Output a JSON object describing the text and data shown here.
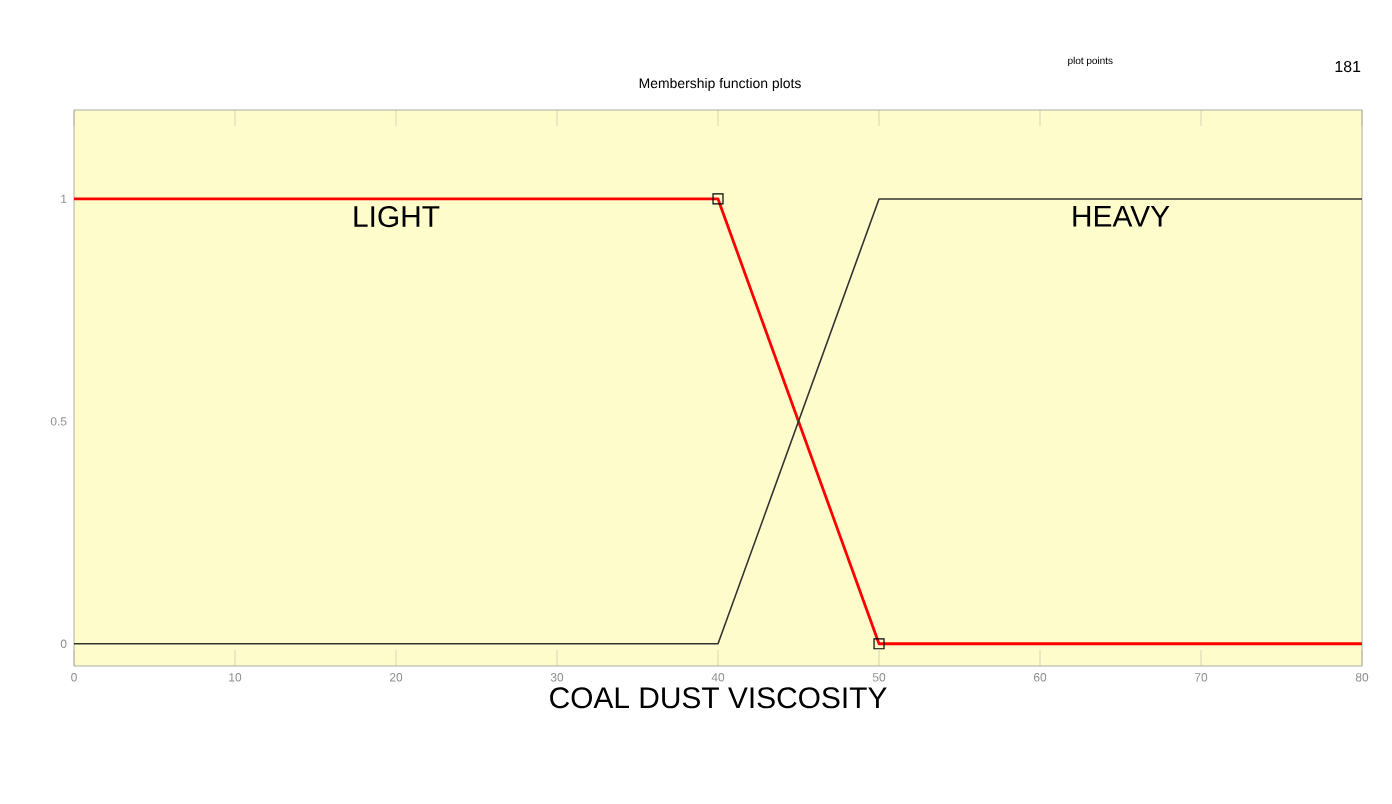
{
  "chart_data": {
    "type": "line",
    "title": "Membership function plots",
    "xlabel": "COAL DUST VISCOSITY",
    "annotations": [
      "plot points",
      "181"
    ],
    "x": [
      0,
      40,
      50,
      80
    ],
    "series": [
      {
        "name": "LIGHT",
        "color": "#ff0000",
        "values": [
          1,
          1,
          0,
          0
        ]
      },
      {
        "name": "HEAVY",
        "color": "#333333",
        "values": [
          0,
          0,
          1,
          1
        ]
      },
      {
        "type": "scatter",
        "color": "#000000",
        "x": [
          40,
          50
        ],
        "values": [
          1,
          0
        ],
        "marker": "square"
      }
    ],
    "xlim": [
      0,
      80
    ],
    "ylim": [
      -0.05,
      1.2
    ],
    "xticks": [
      0,
      10,
      20,
      30,
      40,
      50,
      60,
      70,
      80
    ],
    "yticks": [
      0,
      0.5,
      1
    ],
    "grid": false,
    "marker": "none",
    "line_style": "solid"
  }
}
